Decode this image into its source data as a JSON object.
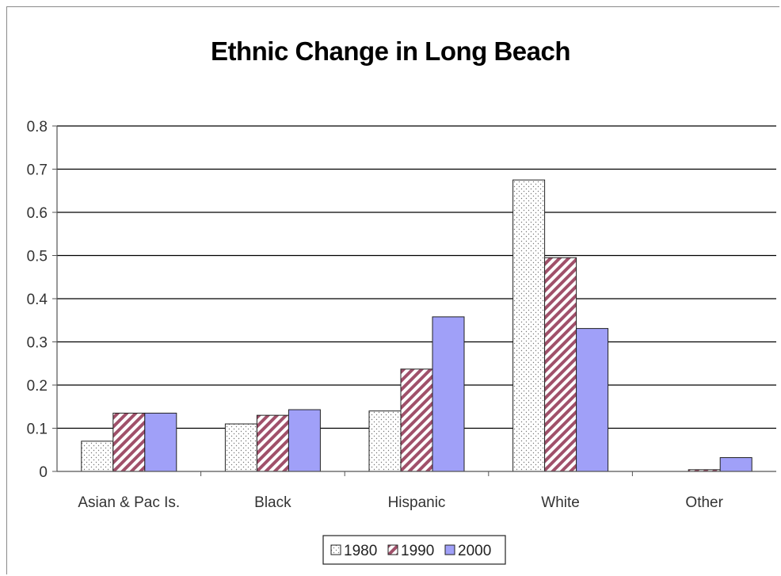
{
  "chart_data": {
    "type": "bar",
    "title": "Ethnic Change in Long Beach",
    "xlabel": "",
    "ylabel": "",
    "categories": [
      "Asian & Pac Is.",
      "Black",
      "Hispanic",
      "White",
      "Other"
    ],
    "series": [
      {
        "name": "1980",
        "values": [
          0.07,
          0.11,
          0.14,
          0.675,
          0.0
        ],
        "fill": "dots",
        "color": "#ffffff"
      },
      {
        "name": "1990",
        "values": [
          0.135,
          0.13,
          0.237,
          0.495,
          0.004
        ],
        "fill": "diagonal-stripes",
        "color": "#a0506a"
      },
      {
        "name": "2000",
        "values": [
          0.135,
          0.143,
          0.358,
          0.331,
          0.032
        ],
        "fill": "solid",
        "color": "#a0a0f8"
      }
    ],
    "ylim": [
      0,
      0.8
    ],
    "yticks": [
      "0",
      "0.1",
      "0.2",
      "0.3",
      "0.4",
      "0.5",
      "0.6",
      "0.7",
      "0.8"
    ],
    "grid": true,
    "legend": "bottom"
  }
}
